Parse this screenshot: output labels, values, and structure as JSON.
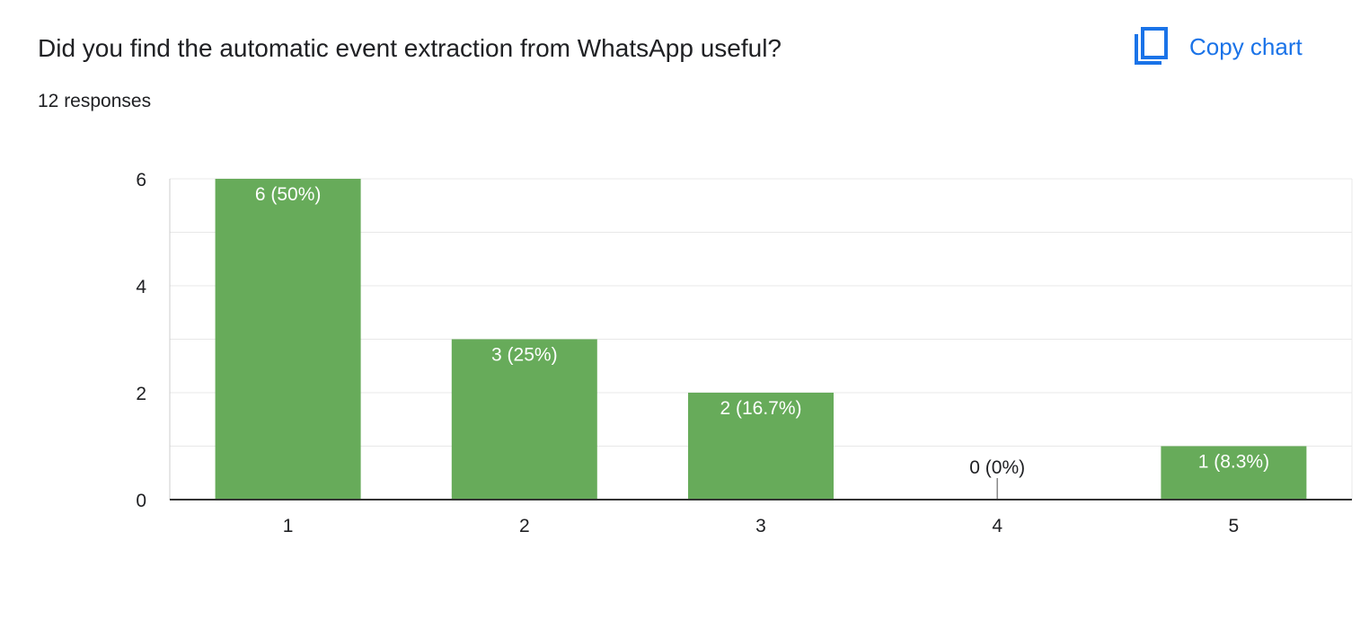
{
  "header": {
    "title": "Did you find the automatic event extraction from WhatsApp useful?",
    "subtitle": "12 responses",
    "copy_label": "Copy chart",
    "copy_icon": "copy-icon"
  },
  "colors": {
    "bar": "#67ab5a",
    "accent": "#1a73e8",
    "gridline": "#e8e8e8",
    "axis": "#333333",
    "text": "#202124"
  },
  "chart_data": {
    "type": "bar",
    "categories": [
      "1",
      "2",
      "3",
      "4",
      "5"
    ],
    "values": [
      6,
      3,
      2,
      0,
      1
    ],
    "data_labels": [
      "6 (50%)",
      "3 (25%)",
      "2 (16.7%)",
      "0 (0%)",
      "1 (8.3%)"
    ],
    "title": "Did you find the automatic event extraction from WhatsApp useful?",
    "xlabel": "",
    "ylabel": "",
    "ylim": [
      0,
      6
    ],
    "yticks": [
      0,
      2,
      4,
      6
    ],
    "grid": true
  }
}
